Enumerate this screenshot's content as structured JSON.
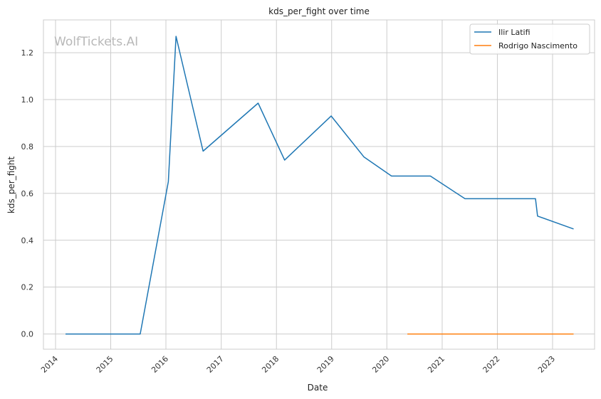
{
  "watermark": "WolfTickets.AI",
  "chart_data": {
    "type": "line",
    "title": "kds_per_fight over time",
    "xlabel": "Date",
    "ylabel": "kds_per_fight",
    "x_axis": "date",
    "xlim": [
      "2013-10-13",
      "2023-10-06"
    ],
    "ylim": [
      -0.065,
      1.34
    ],
    "x_ticks": [
      "2014",
      "2015",
      "2016",
      "2017",
      "2018",
      "2019",
      "2020",
      "2021",
      "2022",
      "2023"
    ],
    "y_ticks": [
      "0.0",
      "0.2",
      "0.4",
      "0.6",
      "0.8",
      "1.0",
      "1.2"
    ],
    "grid": true,
    "legend_position": "top-right",
    "series": [
      {
        "name": "Ilir Latifi",
        "color": "#1f77b4",
        "points": [
          [
            "2014-03-08",
            0.0
          ],
          [
            "2015-07-15",
            0.0
          ],
          [
            "2016-01-17",
            0.65
          ],
          [
            "2016-03-08",
            1.27
          ],
          [
            "2016-09-03",
            0.78
          ],
          [
            "2017-09-02",
            0.985
          ],
          [
            "2018-02-24",
            0.742
          ],
          [
            "2018-12-29",
            0.93
          ],
          [
            "2019-08-03",
            0.755
          ],
          [
            "2020-02-01",
            0.674
          ],
          [
            "2020-10-15",
            0.674
          ],
          [
            "2021-06-01",
            0.577
          ],
          [
            "2022-09-10",
            0.577
          ],
          [
            "2022-09-24",
            0.503
          ],
          [
            "2023-05-20",
            0.448
          ]
        ]
      },
      {
        "name": "Rodrigo Nascimento",
        "color": "#ff7f0e",
        "points": [
          [
            "2020-05-16",
            0.0
          ],
          [
            "2023-05-20",
            0.0
          ]
        ]
      }
    ]
  }
}
